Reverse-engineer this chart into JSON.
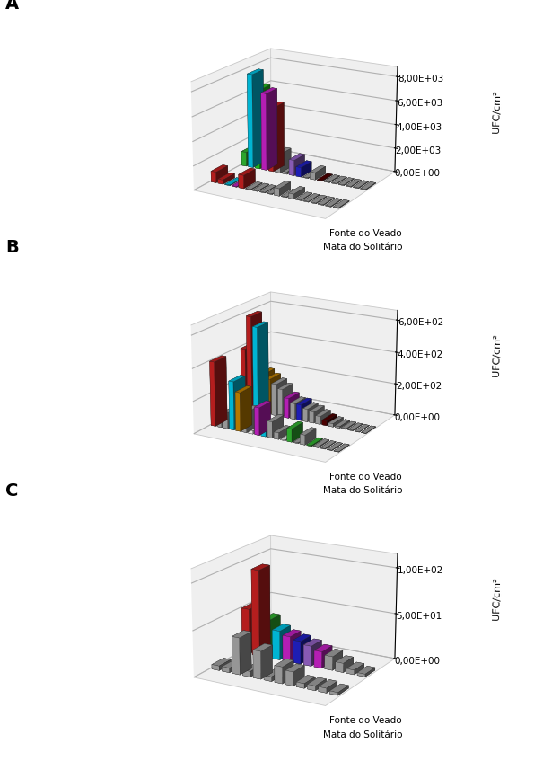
{
  "panels": [
    {
      "label": "A",
      "ylabel": "UFC/cm²",
      "ytick_vals": [
        0,
        2000,
        4000,
        6000,
        8000
      ],
      "ytick_labels": [
        "0,00E+00",
        "2,00E+03",
        "4,00E+03",
        "6,00E+03",
        "8,00E+03"
      ],
      "ylim": 8800,
      "n_species": 18,
      "fv_vals": [
        1200,
        7900,
        6700,
        6500,
        5400,
        1600,
        200,
        1300,
        800,
        50,
        600,
        50,
        50,
        50,
        50,
        50,
        50,
        50
      ],
      "ms_vals": [
        900,
        350,
        50,
        50,
        1100,
        50,
        50,
        50,
        50,
        600,
        50,
        400,
        50,
        50,
        50,
        50,
        50,
        50
      ],
      "colors_fv": [
        "#33bb33",
        "#00ccee",
        "#22cc22",
        "#cc22cc",
        "#cc2222",
        "#aaaaaa",
        "#aaaaaa",
        "#9966cc",
        "#2222cc",
        "#aaaaaa",
        "#aaaaaa",
        "#550000",
        "#aaaaaa",
        "#aaaaaa",
        "#aaaaaa",
        "#aaaaaa",
        "#aaaaaa",
        "#aaaaaa"
      ],
      "colors_ms": [
        "#cc2222",
        "#cc2222",
        "#00ccee",
        "#cc22cc",
        "#cc2222",
        "#aaaaaa",
        "#aaaaaa",
        "#aaaaaa",
        "#aaaaaa",
        "#aaaaaa",
        "#aaaaaa",
        "#aaaaaa",
        "#aaaaaa",
        "#aaaaaa",
        "#aaaaaa",
        "#aaaaaa",
        "#aaaaaa",
        "#aaaaaa"
      ]
    },
    {
      "label": "B",
      "ylabel": "UFC/cm²",
      "ytick_vals": [
        0,
        200,
        400,
        600
      ],
      "ytick_labels": [
        "0,00E+00",
        "2,00E+02",
        "4,00E+02",
        "6,00E+02"
      ],
      "ylim": 660,
      "n_species": 20,
      "fv_vals": [
        390,
        600,
        540,
        250,
        225,
        200,
        175,
        125,
        100,
        100,
        80,
        70,
        50,
        30,
        20,
        10,
        5,
        3,
        2,
        1
      ],
      "ms_vals": [
        400,
        50,
        100,
        300,
        240,
        125,
        20,
        170,
        50,
        100,
        40,
        5,
        80,
        5,
        60,
        5,
        5,
        3,
        2,
        1
      ],
      "colors_fv": [
        "#cc2222",
        "#cc2222",
        "#00ccee",
        "#cc8800",
        "#cc8800",
        "#aaaaaa",
        "#aaaaaa",
        "#cc22cc",
        "#aaaaaa",
        "#2222cc",
        "#aaaaaa",
        "#aaaaaa",
        "#aaaaaa",
        "#550000",
        "#aaaaaa",
        "#aaaaaa",
        "#aaaaaa",
        "#aaaaaa",
        "#aaaaaa",
        "#aaaaaa"
      ],
      "colors_ms": [
        "#cc2222",
        "#aaaaaa",
        "#aaaaaa",
        "#00ccee",
        "#cc8800",
        "#aaaaaa",
        "#ffffff",
        "#cc22cc",
        "#00ccee",
        "#aaaaaa",
        "#aaaaaa",
        "#ffffff",
        "#33bb33",
        "#aaaaaa",
        "#aaaaaa",
        "#33bb33",
        "#aaaaaa",
        "#aaaaaa",
        "#aaaaaa",
        "#aaaaaa"
      ]
    },
    {
      "label": "C",
      "ylabel": "UFC/cm²",
      "ytick_vals": [
        0,
        50,
        100
      ],
      "ytick_labels": [
        "0,00E+00",
        "5,00E+01",
        "1,00E+02"
      ],
      "ylim": 115,
      "n_species": 12,
      "fv_vals": [
        50,
        95,
        42,
        32,
        28,
        25,
        22,
        18,
        15,
        10,
        5,
        3
      ],
      "ms_vals": [
        5,
        5,
        40,
        6,
        30,
        5,
        18,
        15,
        5,
        5,
        5,
        3
      ],
      "colors_fv": [
        "#cc2222",
        "#cc2222",
        "#33bb33",
        "#00ccee",
        "#cc22cc",
        "#2222cc",
        "#9966cc",
        "#cc22cc",
        "#aaaaaa",
        "#aaaaaa",
        "#aaaaaa",
        "#aaaaaa"
      ],
      "colors_ms": [
        "#aaaaaa",
        "#aaaaaa",
        "#aaaaaa",
        "#aaaaaa",
        "#aaaaaa",
        "#aaaaaa",
        "#aaaaaa",
        "#aaaaaa",
        "#aaaaaa",
        "#aaaaaa",
        "#aaaaaa",
        "#aaaaaa"
      ]
    }
  ],
  "elev": 18,
  "azim": -60,
  "bar_width": 0.72,
  "bar_depth": 0.38,
  "pane_color": "#e0e0e0",
  "pane_edge_color": "#999999",
  "grid_color": "#bbbbbb",
  "label_fontsize": 14,
  "tick_fontsize": 7.5,
  "zlabel_fontsize": 8,
  "annotation_fontsize": 7.5
}
